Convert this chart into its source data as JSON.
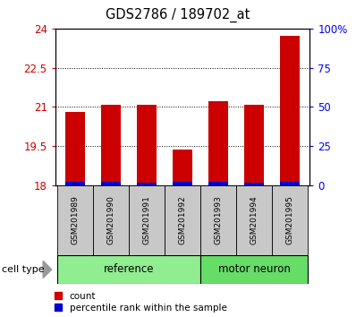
{
  "title": "GDS2786 / 189702_at",
  "samples": [
    "GSM201989",
    "GSM201990",
    "GSM201991",
    "GSM201992",
    "GSM201993",
    "GSM201994",
    "GSM201995"
  ],
  "count_values": [
    20.8,
    21.07,
    21.1,
    19.38,
    21.22,
    21.07,
    23.72
  ],
  "blue_heights": [
    0.13,
    0.13,
    0.12,
    0.13,
    0.13,
    0.12,
    0.13
  ],
  "ylim_left": [
    18,
    24
  ],
  "ylim_right": [
    0,
    100
  ],
  "yticks_left": [
    18,
    19.5,
    21,
    22.5,
    24
  ],
  "yticks_right": [
    0,
    25,
    50,
    75,
    100
  ],
  "ytick_labels_left": [
    "18",
    "19.5",
    "21",
    "22.5",
    "24"
  ],
  "ytick_labels_right": [
    "0",
    "25",
    "50",
    "75",
    "100%"
  ],
  "bar_color_red": "#CC0000",
  "bar_color_blue": "#0000CC",
  "bar_width": 0.55,
  "legend_count": "count",
  "legend_percentile": "percentile rank within the sample",
  "cell_type_label": "cell type",
  "ref_color": "#90EE90",
  "mn_color": "#66DD66",
  "label_bg": "#C8C8C8"
}
